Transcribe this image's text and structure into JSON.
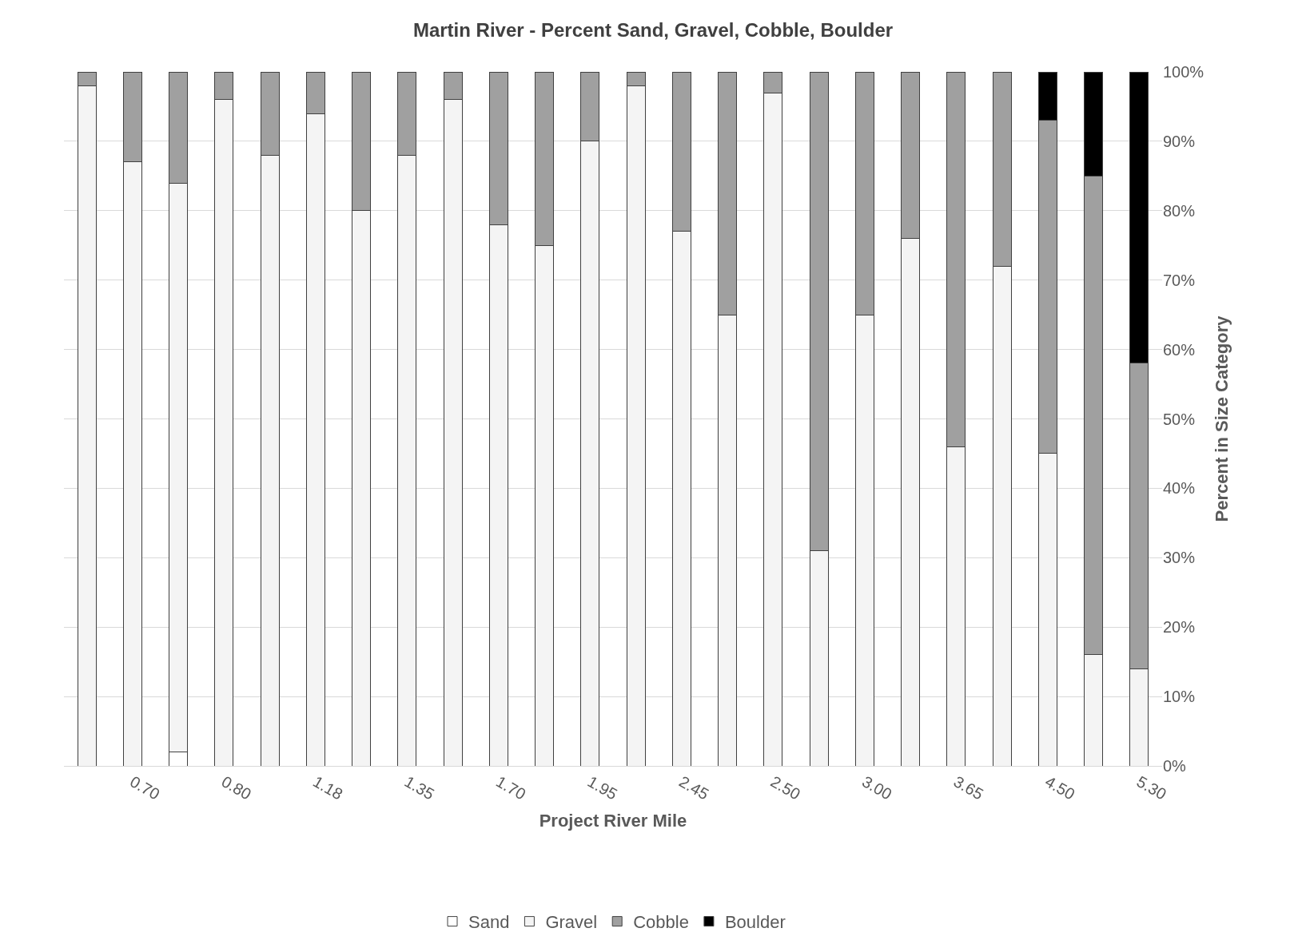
{
  "chart_data": {
    "type": "bar",
    "stacked": true,
    "title": "Martin River - Percent Sand, Gravel, Cobble, Boulder",
    "xlabel": "Project River Mile",
    "ylabel": "Percent in Size Category",
    "categories": [
      null,
      "0.70",
      null,
      "0.80",
      null,
      "1.18",
      null,
      "1.35",
      null,
      "1.70",
      null,
      "1.95",
      null,
      "2.45",
      null,
      "2.50",
      null,
      "3.00",
      null,
      "3.65",
      null,
      "4.50",
      null,
      "5.30"
    ],
    "series": [
      {
        "name": "Sand",
        "color": "#ffffff",
        "values": [
          null,
          null,
          2,
          null,
          null,
          null,
          null,
          null,
          null,
          null,
          null,
          null,
          null,
          null,
          null,
          null,
          null,
          null,
          null,
          null,
          null,
          null,
          null,
          null
        ]
      },
      {
        "name": "Gravel",
        "color": "#f4f4f4",
        "values": [
          98,
          87,
          82,
          96,
          88,
          94,
          80,
          88,
          96,
          78,
          75,
          90,
          98,
          77,
          65,
          97,
          31,
          65,
          76,
          46,
          72,
          45,
          16,
          14
        ]
      },
      {
        "name": "Cobble",
        "color": "#a0a0a0",
        "values": [
          2,
          13,
          16,
          4,
          12,
          6,
          20,
          12,
          4,
          22,
          25,
          10,
          2,
          23,
          35,
          3,
          69,
          35,
          24,
          54,
          28,
          48,
          69,
          44
        ]
      },
      {
        "name": "Boulder",
        "color": "#000000",
        "values": [
          null,
          null,
          null,
          null,
          null,
          null,
          null,
          null,
          null,
          null,
          null,
          null,
          null,
          null,
          null,
          null,
          null,
          null,
          null,
          null,
          null,
          7,
          15,
          42
        ]
      }
    ],
    "ylim": [
      0,
      100
    ],
    "yticks": [
      {
        "value": 0,
        "label": "0%"
      },
      {
        "value": 10,
        "label": "10%"
      },
      {
        "value": 20,
        "label": "20%"
      },
      {
        "value": 30,
        "label": "30%"
      },
      {
        "value": 40,
        "label": "40%"
      },
      {
        "value": 50,
        "label": "50%"
      },
      {
        "value": 60,
        "label": "60%"
      },
      {
        "value": 70,
        "label": "70%"
      },
      {
        "value": 80,
        "label": "80%"
      },
      {
        "value": 90,
        "label": "90%"
      },
      {
        "value": 100,
        "label": "100%"
      }
    ],
    "grid": "y",
    "legend": "bottom"
  }
}
